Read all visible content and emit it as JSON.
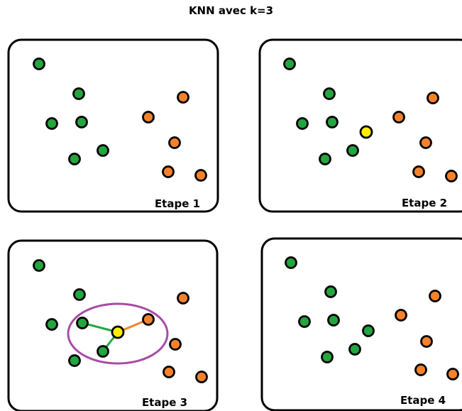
{
  "title": "KNN avec k=3",
  "colors": {
    "class_a": "#22a640",
    "class_b": "#f5822a",
    "query": "#ffee00",
    "ellipse": "#a64ca6",
    "border": "#000000"
  },
  "panels": [
    {
      "label": "Etape 1"
    },
    {
      "label": "Etape 2"
    },
    {
      "label": "Etape 3"
    },
    {
      "label": "Etape 4"
    }
  ]
}
